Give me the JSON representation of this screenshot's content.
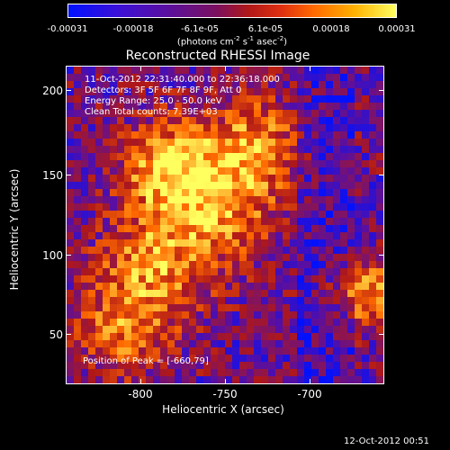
{
  "colorbar": {
    "ticks": [
      "-0.00031",
      "-0.00018",
      "-6.1e-05",
      "6.1e-05",
      "0.00018",
      "0.00031"
    ],
    "units_main": "(photons cm",
    "units_sup1": "-2",
    "units_mid": " s",
    "units_sup2": "-1",
    "units_tail": " asec",
    "units_sup3": "-2",
    "units_end": ")"
  },
  "title": "Reconstructed RHESSI Image",
  "info": {
    "time_range": "11-Oct-2012 22:31:40.000 to 22:36:18.000",
    "detectors": "Detectors: 3F 5F 6F 7F 8F 9F, Att 0",
    "energy_range": "Energy Range: 25.0 - 50.0 keV",
    "clean_counts": "Clean     Total counts: 7.39E+03"
  },
  "peak": "Position of Peak = [-660,79]",
  "x_axis": {
    "label": "Heliocentric X (arcsec)",
    "ticks": [
      "-800",
      "-750",
      "-700"
    ]
  },
  "y_axis": {
    "label": "Heliocentric Y (arcsec)",
    "ticks": [
      "50",
      "100",
      "150",
      "200"
    ]
  },
  "timestamp": "12-Oct-2012 00:51",
  "chart_data": {
    "type": "heatmap",
    "title": "Reconstructed RHESSI Image",
    "xlabel": "Heliocentric X (arcsec)",
    "ylabel": "Heliocentric Y (arcsec)",
    "xlim": [
      -845,
      -665
    ],
    "ylim": [
      20,
      220
    ],
    "colorbar_range": [
      -0.00031,
      0.00031
    ],
    "colormap": [
      "#0011ff",
      "#5a0fa0",
      "#b01818",
      "#ff6a00",
      "#ffff60"
    ],
    "peak_position": [
      -660,
      79
    ],
    "legend": "none",
    "grid": false
  }
}
